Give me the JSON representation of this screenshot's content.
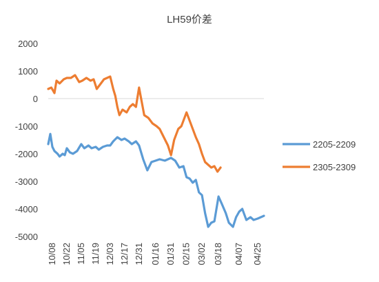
{
  "chart_data": {
    "type": "line",
    "title": "LH59价差",
    "xlabel": "",
    "ylabel": "",
    "ylim": [
      -5000,
      2000
    ],
    "yticks": [
      2000,
      1000,
      0,
      -1000,
      -2000,
      -3000,
      -4000,
      -5000
    ],
    "x_domain": [
      "10/04",
      "05/01"
    ],
    "x_tick_labels": [
      "10/08",
      "10/22",
      "11/05",
      "11/19",
      "12/03",
      "12/17",
      "12/31",
      "01/16",
      "01/31",
      "02/15",
      "03/02",
      "03/18",
      "04/07",
      "04/25"
    ],
    "grid": false,
    "legend_position": "right",
    "series": [
      {
        "name": "2205-2209",
        "color": "#5B9BD5",
        "x": [
          "10/04",
          "10/06",
          "10/08",
          "10/10",
          "10/13",
          "10/15",
          "10/18",
          "10/20",
          "10/22",
          "10/25",
          "10/28",
          "11/01",
          "11/05",
          "11/08",
          "11/12",
          "11/15",
          "11/19",
          "11/22",
          "11/26",
          "11/30",
          "12/03",
          "12/06",
          "12/10",
          "12/14",
          "12/17",
          "12/21",
          "12/24",
          "12/28",
          "12/31",
          "01/04",
          "01/08",
          "01/12",
          "01/16",
          "01/20",
          "01/25",
          "01/28",
          "01/31",
          "02/04",
          "02/08",
          "02/12",
          "02/15",
          "02/18",
          "02/21",
          "02/24",
          "02/27",
          "03/02",
          "03/05",
          "03/08",
          "03/11",
          "03/14",
          "03/16",
          "03/18",
          "03/21",
          "03/25",
          "03/28",
          "04/01",
          "04/04",
          "04/07",
          "04/10",
          "04/14",
          "04/18",
          "04/21",
          "04/25",
          "04/28",
          "05/01"
        ],
        "values": [
          -1650,
          -1280,
          -1750,
          -1900,
          -2000,
          -2100,
          -2000,
          -2050,
          -1800,
          -1950,
          -2000,
          -1900,
          -1650,
          -1800,
          -1700,
          -1800,
          -1750,
          -1850,
          -1750,
          -1700,
          -1700,
          -1550,
          -1400,
          -1500,
          -1450,
          -1550,
          -1650,
          -1550,
          -1700,
          -2200,
          -2600,
          -2300,
          -2250,
          -2200,
          -2250,
          -2200,
          -2150,
          -2250,
          -2500,
          -2450,
          -2850,
          -2900,
          -3050,
          -2950,
          -3400,
          -3500,
          -4150,
          -4650,
          -4500,
          -4450,
          -4000,
          -3550,
          -3800,
          -4150,
          -4500,
          -4650,
          -4300,
          -4100,
          -4000,
          -4400,
          -4300,
          -4400,
          -4350,
          -4300,
          -4250
        ]
      },
      {
        "name": "2305-2309",
        "color": "#ED7D31",
        "x": [
          "10/04",
          "10/07",
          "10/10",
          "10/12",
          "10/15",
          "10/19",
          "10/22",
          "10/26",
          "10/30",
          "11/03",
          "11/06",
          "11/10",
          "11/14",
          "11/17",
          "11/20",
          "11/23",
          "11/27",
          "11/30",
          "12/03",
          "12/06",
          "12/08",
          "12/10",
          "12/12",
          "12/15",
          "12/19",
          "12/22",
          "12/25",
          "12/28",
          "12/31",
          "01/05",
          "01/09",
          "01/13",
          "01/17",
          "01/20",
          "01/24",
          "01/28",
          "01/31",
          "02/03",
          "02/07",
          "02/10",
          "02/13",
          "02/15",
          "02/18",
          "02/21",
          "02/24",
          "02/27",
          "03/02",
          "03/05",
          "03/08",
          "03/11",
          "03/14",
          "03/17",
          "03/20"
        ],
        "values": [
          350,
          400,
          200,
          650,
          550,
          700,
          750,
          750,
          850,
          600,
          650,
          750,
          650,
          700,
          350,
          500,
          700,
          750,
          800,
          350,
          100,
          -300,
          -600,
          -400,
          -500,
          -300,
          -200,
          -300,
          400,
          -600,
          -700,
          -900,
          -1000,
          -1100,
          -1400,
          -1700,
          -2050,
          -1500,
          -1100,
          -1000,
          -700,
          -500,
          -800,
          -1100,
          -1400,
          -1650,
          -2000,
          -2300,
          -2400,
          -2500,
          -2450,
          -2650,
          -2500
        ]
      }
    ]
  }
}
